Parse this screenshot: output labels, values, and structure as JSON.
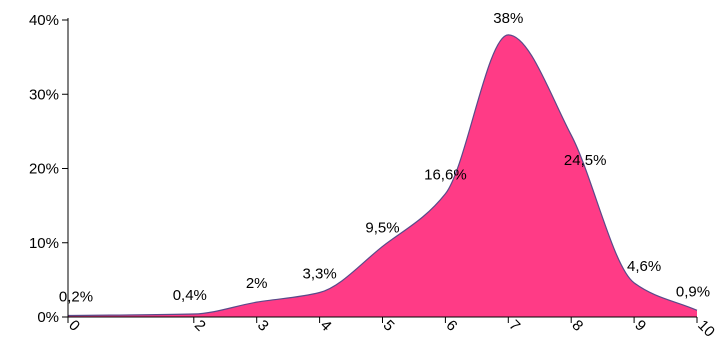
{
  "chart_data": {
    "type": "area",
    "title": "",
    "xlabel": "",
    "ylabel": "",
    "x": [
      0,
      2,
      3,
      4,
      5,
      6,
      7,
      8,
      9,
      10
    ],
    "categories": [
      "0",
      "2",
      "3",
      "4",
      "5",
      "6",
      "7",
      "8",
      "9",
      "10"
    ],
    "series": [
      {
        "values": [
          0.2,
          0.4,
          2,
          3.3,
          9.5,
          16.6,
          38,
          24.5,
          4.6,
          0.9
        ],
        "labels": [
          "0,2%",
          "0,4%",
          "2%",
          "3,3%",
          "9,5%",
          "16,6%",
          "38%",
          "24,5%",
          "4,6%",
          "0,9%"
        ],
        "color": "#ff3b86"
      }
    ],
    "ylim": [
      0,
      40
    ],
    "yticks": [
      0,
      10,
      20,
      30,
      40
    ],
    "ytick_labels": [
      "0%",
      "10%",
      "20%",
      "30%",
      "40%"
    ],
    "grid": false,
    "legend": "none",
    "colors": {
      "fill": "#ff3b86",
      "stroke": "#5a4a8a",
      "axis": "#000000"
    }
  }
}
